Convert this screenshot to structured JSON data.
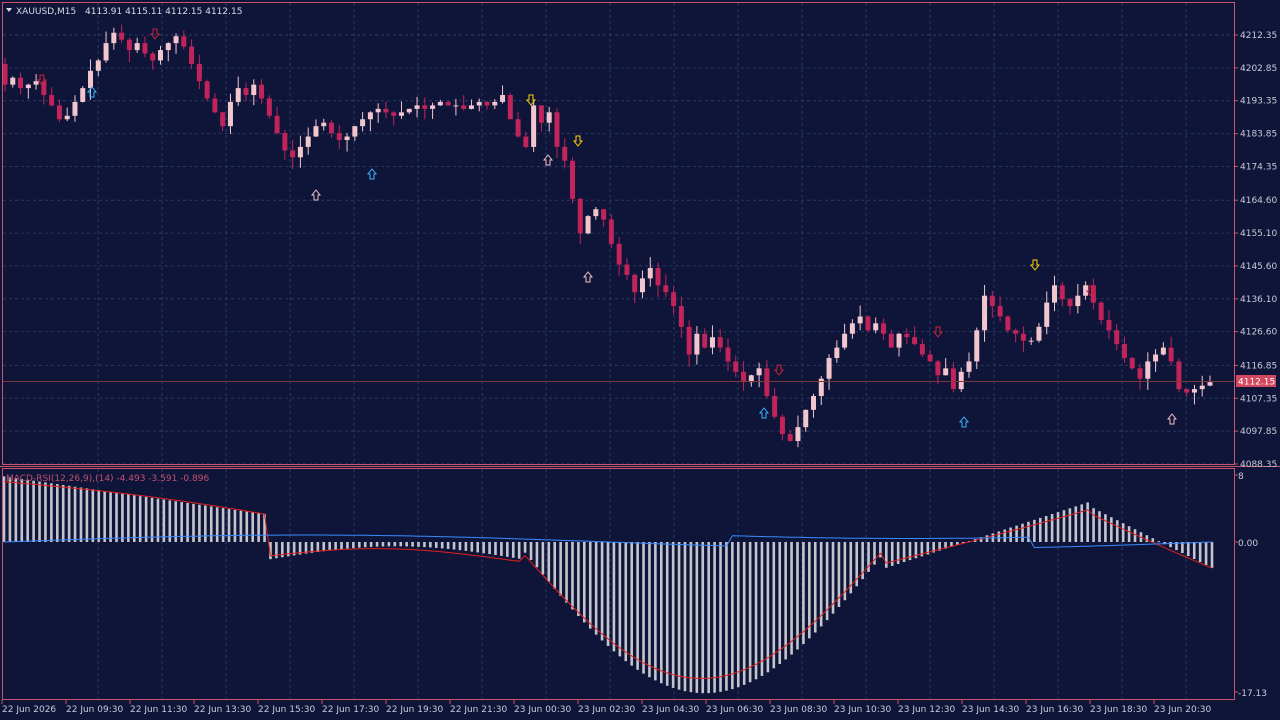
{
  "header": {
    "symbol_label": "XAUUSD,M15",
    "ohlc_label": "4113.91 4115.11 4112.15 4112.15",
    "collapse_icon": "triangle-down-icon"
  },
  "indicator": {
    "label": "MACD-RSI(12,26,9),(14) -4.493 -3.591 -0.896"
  },
  "current_price": "4112.15",
  "colors": {
    "background": "#0f1538",
    "grid": "#2a3a66",
    "axis": "#c8546e",
    "bull": "#f2c6cf",
    "bear": "#c0245a",
    "arrow_red": "#c8243c",
    "arrow_cyan": "#39b5ff",
    "arrow_yellow": "#ffd400",
    "arrow_pink": "#f0c0cc",
    "histogram": "#c4c4cc",
    "signal_line": "#e0201c",
    "macd_line": "#3a8cff"
  },
  "chart_data": [
    {
      "type": "candlestick",
      "symbol": "XAUUSD",
      "timeframe": "M15",
      "price_ticks": [
        "4212.35",
        "4202.85",
        "4193.35",
        "4183.85",
        "4174.35",
        "4164.60",
        "4155.10",
        "4145.60",
        "4136.10",
        "4126.60",
        "4116.85",
        "4107.35",
        "4097.85",
        "4088.35"
      ],
      "time_ticks": [
        "22 Jun 2026",
        "22 Jun 09:30",
        "22 Jun 11:30",
        "22 Jun 13:30",
        "22 Jun 15:30",
        "22 Jun 17:30",
        "22 Jun 19:30",
        "22 Jun 21:30",
        "23 Jun 00:30",
        "23 Jun 02:30",
        "23 Jun 04:30",
        "23 Jun 06:30",
        "23 Jun 08:30",
        "23 Jun 10:30",
        "23 Jun 12:30",
        "23 Jun 14:30",
        "23 Jun 16:30",
        "23 Jun 18:30",
        "23 Jun 20:30"
      ],
      "ylim": [
        4087.0,
        4221.0
      ],
      "close_path": [
        4198,
        4200,
        4197,
        4198,
        4199,
        4195,
        4192,
        4188,
        4189,
        4193,
        4197,
        4202,
        4205,
        4210,
        4213,
        4211,
        4208,
        4210,
        4207,
        4205,
        4208,
        4210,
        4212,
        4209,
        4204,
        4199,
        4194,
        4190,
        4186,
        4193,
        4197,
        4195,
        4198,
        4194,
        4189,
        4184,
        4179,
        4177,
        4180,
        4183,
        4186,
        4187,
        4184,
        4182,
        4183,
        4186,
        4188,
        4190,
        4191,
        4190,
        4189,
        4190,
        4191,
        4192,
        4191,
        4192,
        4193,
        4192,
        4192,
        4191,
        4192,
        4193,
        4192,
        4193,
        4195,
        4188,
        4183,
        4180,
        4192,
        4187,
        4190,
        4180,
        4176,
        4165,
        4155,
        4160,
        4162,
        4159,
        4152,
        4146,
        4143,
        4138,
        4142,
        4145,
        4140,
        4138,
        4134,
        4128,
        4120,
        4126,
        4122,
        4125,
        4122,
        4118,
        4115,
        4112,
        4114,
        4116,
        4108,
        4102,
        4097,
        4095,
        4099,
        4104,
        4108,
        4113,
        4119,
        4122,
        4126,
        4129,
        4131,
        4127,
        4129,
        4126,
        4122,
        4126,
        4125,
        4123,
        4120,
        4118,
        4114,
        4116,
        4110,
        4115,
        4118,
        4127,
        4137,
        4134,
        4131,
        4127,
        4126,
        4124,
        4124,
        4128,
        4135,
        4140,
        4136,
        4134,
        4137,
        4140,
        4135,
        4130,
        4127,
        4123,
        4119,
        4116,
        4113,
        4118,
        4120,
        4122,
        4118,
        4110,
        4109,
        4110,
        4111,
        4112
      ]
    },
    {
      "type": "bar",
      "name": "MACD-RSI(12,26,9),(14)",
      "ylim": [
        -17.13,
        8.0
      ],
      "y_ticks": [
        "8",
        "0.00",
        "-17.13"
      ],
      "values": [
        "histogram vs signal (red) and main (blue) lines — see script"
      ]
    }
  ]
}
